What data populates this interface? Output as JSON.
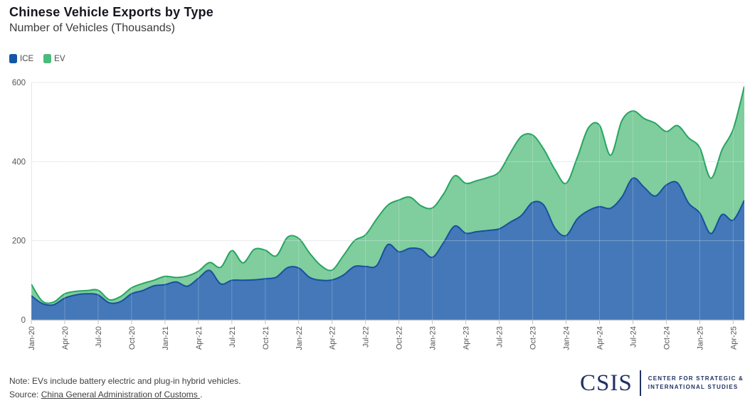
{
  "header": {
    "title": "Chinese Vehicle Exports by Type",
    "subtitle": "Number of Vehicles (Thousands)"
  },
  "legend": [
    {
      "label": "ICE",
      "color": "#1557a6"
    },
    {
      "label": "EV",
      "color": "#4cba7c"
    }
  ],
  "chart_data": {
    "type": "area",
    "stacked": true,
    "title": "Chinese Vehicle Exports by Type",
    "ylabel": "Number of Vehicles (Thousands)",
    "ylim": [
      0,
      600
    ],
    "yticks": [
      0,
      200,
      400,
      600
    ],
    "xtick_every": 3,
    "grid": true,
    "legend_position": "top-left",
    "x": [
      "Jan-20",
      "Feb-20",
      "Mar-20",
      "Apr-20",
      "May-20",
      "Jun-20",
      "Jul-20",
      "Aug-20",
      "Sep-20",
      "Oct-20",
      "Nov-20",
      "Dec-20",
      "Jan-21",
      "Feb-21",
      "Mar-21",
      "Apr-21",
      "May-21",
      "Jun-21",
      "Jul-21",
      "Aug-21",
      "Sep-21",
      "Oct-21",
      "Nov-21",
      "Dec-21",
      "Jan-22",
      "Feb-22",
      "Mar-22",
      "Apr-22",
      "May-22",
      "Jun-22",
      "Jul-22",
      "Aug-22",
      "Sep-22",
      "Oct-22",
      "Nov-22",
      "Dec-22",
      "Jan-23",
      "Feb-23",
      "Mar-23",
      "Apr-23",
      "May-23",
      "Jun-23",
      "Jul-23",
      "Aug-23",
      "Sep-23",
      "Oct-23",
      "Nov-23",
      "Dec-23",
      "Jan-24",
      "Feb-24",
      "Mar-24",
      "Apr-24",
      "May-24",
      "Jun-24",
      "Jul-24",
      "Aug-24",
      "Sep-24",
      "Oct-24",
      "Nov-24",
      "Dec-24",
      "Jan-25",
      "Feb-25",
      "Mar-25",
      "Apr-25",
      "May-25"
    ],
    "series": [
      {
        "name": "ICE",
        "fill": "#4478b9",
        "stroke": "#17519e",
        "values": [
          61,
          41,
          38,
          55,
          63,
          66,
          63,
          43,
          46,
          66,
          74,
          86,
          89,
          96,
          85,
          105,
          125,
          91,
          100,
          100,
          101,
          104,
          108,
          132,
          131,
          107,
          100,
          101,
          113,
          135,
          135,
          137,
          190,
          172,
          181,
          178,
          158,
          195,
          237,
          219,
          223,
          226,
          230,
          247,
          264,
          297,
          290,
          232,
          213,
          255,
          276,
          286,
          282,
          310,
          358,
          335,
          313,
          341,
          346,
          295,
          270,
          218,
          266,
          252,
          302
        ]
      },
      {
        "name": "EV",
        "fill": "#80cd9e",
        "stroke": "#27a561",
        "values": [
          29,
          6,
          7,
          11,
          9,
          8,
          12,
          8,
          13,
          15,
          18,
          14,
          21,
          11,
          26,
          18,
          20,
          42,
          75,
          44,
          77,
          72,
          54,
          77,
          75,
          61,
          37,
          25,
          49,
          65,
          80,
          118,
          100,
          131,
          129,
          110,
          125,
          123,
          127,
          126,
          129,
          134,
          144,
          175,
          200,
          170,
          141,
          148,
          132,
          155,
          209,
          206,
          134,
          193,
          170,
          174,
          184,
          135,
          145,
          165,
          165,
          140,
          164,
          230,
          288
        ]
      }
    ]
  },
  "footer": {
    "note": "Note: EVs include battery electric and plug-in hybrid vehicles.",
    "source_prefix": "Source: ",
    "source_link": "China General Administration of Customs ",
    "source_suffix": ".",
    "logo": {
      "acronym": "CSIS",
      "line1": "Center for Strategic &",
      "line2": "International Studies"
    }
  }
}
